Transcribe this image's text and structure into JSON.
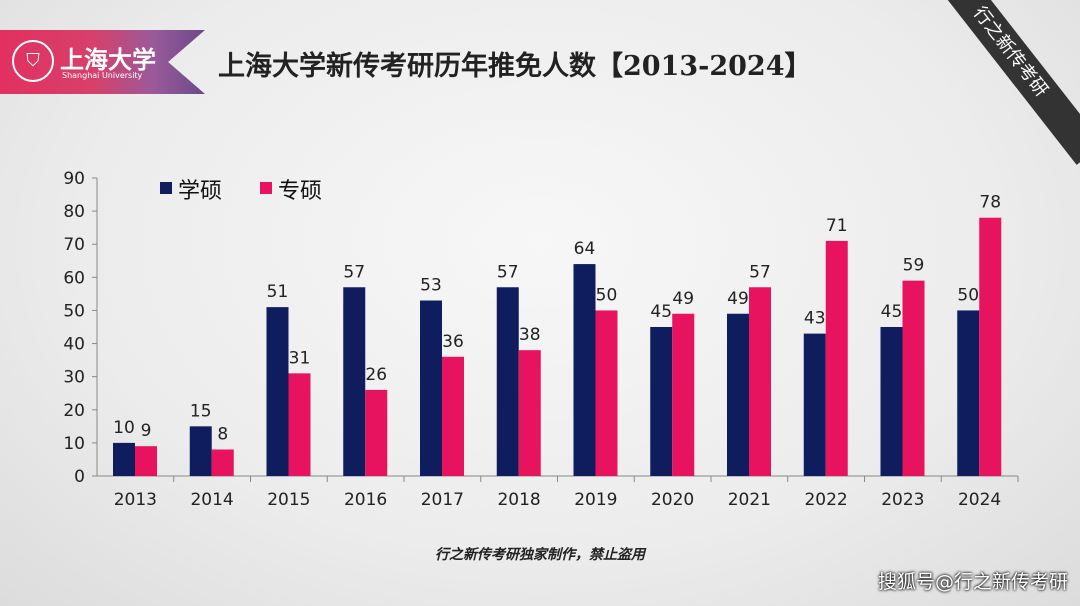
{
  "header": {
    "logo_cn": "上海大学",
    "logo_en": "Shanghai University",
    "title": "上海大学新传考研历年推免人数【2013-2024】",
    "corner_tag": "行之新传考研"
  },
  "footer": {
    "credit": "行之新传考研独家制作，禁止盗用",
    "watermark": "搜狐号@行之新传考研"
  },
  "chart_data": {
    "type": "bar",
    "title": "",
    "categories": [
      "2013",
      "2014",
      "2015",
      "2016",
      "2017",
      "2018",
      "2019",
      "2020",
      "2021",
      "2022",
      "2023",
      "2024"
    ],
    "series": [
      {
        "name": "学硕",
        "color": "#0f1c5e",
        "values": [
          10,
          15,
          51,
          57,
          53,
          57,
          64,
          45,
          49,
          43,
          45,
          50
        ]
      },
      {
        "name": "专硕",
        "color": "#e8135f",
        "values": [
          9,
          8,
          31,
          26,
          36,
          38,
          50,
          49,
          57,
          71,
          59,
          78
        ]
      }
    ],
    "ylim": [
      0,
      90
    ],
    "yticks": [
      "0",
      "10",
      "20",
      "30",
      "40",
      "50",
      "60",
      "70",
      "80",
      "90"
    ],
    "grid": false,
    "legend": "top-left"
  }
}
